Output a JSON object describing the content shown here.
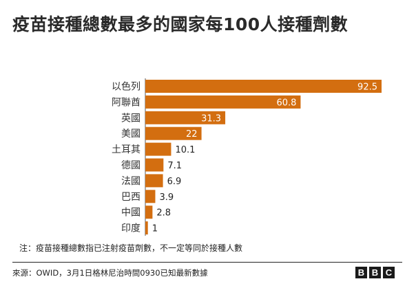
{
  "chart_data": {
    "type": "bar",
    "orientation": "horizontal",
    "title": "疫苗接種總數最多的國家每100人接種劑數",
    "categories": [
      "以色列",
      "阿聯酋",
      "英國",
      "美國",
      "土耳其",
      "德國",
      "法國",
      "巴西",
      "中國",
      "印度"
    ],
    "values": [
      92.5,
      60.8,
      31.3,
      22,
      10.1,
      7.1,
      6.9,
      3.9,
      2.8,
      1
    ],
    "value_labels": [
      "92.5",
      "60.8",
      "31.3",
      "22",
      "10.1",
      "7.1",
      "6.9",
      "3.9",
      "2.8",
      "1"
    ],
    "xlim": [
      0,
      92.5
    ],
    "bar_color": "#d36e10",
    "note": "注：疫苗接種總數指已注射疫苗劑數，不一定等同於接種人數",
    "source": "來源：OWID，3月1日格林尼治時間0930已知最新數據"
  },
  "logo": [
    "B",
    "B",
    "C"
  ]
}
